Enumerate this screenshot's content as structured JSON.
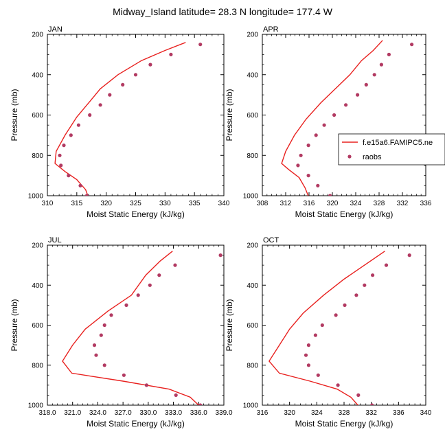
{
  "chart_data": {
    "type": "line",
    "title": "Midway_Island  latitude= 28.3 N longitude= 177.4 W",
    "ylabel": "Pressure (mb)",
    "xlabel": "Moist Static Energy (kJ/kg)",
    "yticks": [
      "200",
      "400",
      "600",
      "800",
      "1000"
    ],
    "ylim": [
      200,
      1000
    ],
    "legend": {
      "placement": "right",
      "entries": [
        {
          "name": "f.e15a6.FAMIPC5.ne",
          "style": "line",
          "color": "#e8201e"
        },
        {
          "name": "raobs",
          "style": "marker",
          "color": "#b23a62"
        }
      ]
    },
    "panels": [
      {
        "name": "JAN",
        "xlim": [
          310,
          340
        ],
        "xticks": [
          "310",
          "315",
          "320",
          "325",
          "330",
          "335",
          "340"
        ],
        "model": {
          "name": "f.e15a6.FAMIPC5.ne",
          "points": [
            [
              333.5,
              240
            ],
            [
              330,
              280
            ],
            [
              326,
              330
            ],
            [
              322,
              400
            ],
            [
              319,
              470
            ],
            [
              317,
              540
            ],
            [
              315,
              610
            ],
            [
              313,
              700
            ],
            [
              311.5,
              780
            ],
            [
              311.3,
              840
            ],
            [
              313,
              880
            ],
            [
              315,
              920
            ],
            [
              316.5,
              970
            ],
            [
              317,
              1010
            ]
          ]
        },
        "obs": {
          "name": "raobs",
          "points": [
            [
              336,
              250
            ],
            [
              331,
              300
            ],
            [
              327.5,
              350
            ],
            [
              325,
              400
            ],
            [
              322.8,
              450
            ],
            [
              320.6,
              500
            ],
            [
              319,
              550
            ],
            [
              317.2,
              600
            ],
            [
              315.3,
              650
            ],
            [
              314,
              700
            ],
            [
              312.8,
              750
            ],
            [
              312.1,
              800
            ],
            [
              312.3,
              850
            ],
            [
              313.6,
              900
            ],
            [
              315.6,
              950
            ],
            [
              316.7,
              1000
            ]
          ]
        }
      },
      {
        "name": "APR",
        "xlim": [
          308,
          336
        ],
        "xticks": [
          "308",
          "312",
          "316",
          "320",
          "324",
          "328",
          "332",
          "336"
        ],
        "model": {
          "name": "f.e15a6.FAMIPC5.ne",
          "points": [
            [
              328.6,
              230
            ],
            [
              327,
              280
            ],
            [
              325,
              330
            ],
            [
              323,
              400
            ],
            [
              320.5,
              470
            ],
            [
              318,
              540
            ],
            [
              315.5,
              620
            ],
            [
              313.5,
              700
            ],
            [
              312,
              780
            ],
            [
              311.3,
              840
            ],
            [
              312.5,
              870
            ],
            [
              314.3,
              910
            ],
            [
              315.3,
              960
            ],
            [
              316,
              1010
            ]
          ]
        },
        "obs": {
          "name": "raobs",
          "points": [
            [
              333.6,
              250
            ],
            [
              329.7,
              300
            ],
            [
              328.4,
              350
            ],
            [
              327.2,
              400
            ],
            [
              325.8,
              450
            ],
            [
              324.3,
              500
            ],
            [
              322.3,
              550
            ],
            [
              320.3,
              600
            ],
            [
              318.6,
              650
            ],
            [
              317.2,
              700
            ],
            [
              315.9,
              750
            ],
            [
              314.6,
              800
            ],
            [
              314.1,
              850
            ],
            [
              315.9,
              900
            ],
            [
              317.5,
              950
            ],
            [
              319.6,
              1000
            ]
          ]
        }
      },
      {
        "name": "JUL",
        "xlim": [
          318,
          339
        ],
        "xticks": [
          "318.0",
          "321.0",
          "324.0",
          "327.0",
          "330.0",
          "333.0",
          "336.0",
          "339.0"
        ],
        "model": {
          "name": "f.e15a6.FAMIPC5.ne",
          "points": [
            [
              332.9,
              230
            ],
            [
              331.4,
              280
            ],
            [
              329.7,
              350
            ],
            [
              328,
              450
            ],
            [
              325.2,
              530
            ],
            [
              322.5,
              620
            ],
            [
              321,
              700
            ],
            [
              319.8,
              780
            ],
            [
              320.9,
              840
            ],
            [
              327,
              880
            ],
            [
              332.5,
              920
            ],
            [
              335,
              960
            ],
            [
              336.5,
              1020
            ]
          ]
        },
        "obs": {
          "name": "raobs",
          "points": [
            [
              338.6,
              250
            ],
            [
              333.2,
              300
            ],
            [
              331.3,
              350
            ],
            [
              330.2,
              400
            ],
            [
              328.8,
              450
            ],
            [
              327.4,
              500
            ],
            [
              325.6,
              550
            ],
            [
              324.8,
              600
            ],
            [
              324.4,
              650
            ],
            [
              323.6,
              700
            ],
            [
              323.8,
              750
            ],
            [
              324.8,
              800
            ],
            [
              327.1,
              850
            ],
            [
              329.8,
              900
            ],
            [
              333.3,
              950
            ],
            [
              336.2,
              1000
            ]
          ]
        }
      },
      {
        "name": "OCT",
        "xlim": [
          316,
          340
        ],
        "xticks": [
          "316",
          "320",
          "324",
          "328",
          "332",
          "336",
          "340"
        ],
        "model": {
          "name": "f.e15a6.FAMIPC5.ne",
          "points": [
            [
              334,
              230
            ],
            [
              331,
              300
            ],
            [
              328,
              370
            ],
            [
              325,
              450
            ],
            [
              322,
              540
            ],
            [
              320,
              620
            ],
            [
              318.5,
              700
            ],
            [
              317,
              780
            ],
            [
              318.5,
              840
            ],
            [
              323,
              880
            ],
            [
              327,
              920
            ],
            [
              329,
              960
            ],
            [
              330.3,
              1010
            ]
          ]
        },
        "obs": {
          "name": "raobs",
          "points": [
            [
              337.6,
              250
            ],
            [
              334.2,
              300
            ],
            [
              332.2,
              350
            ],
            [
              331,
              400
            ],
            [
              329.8,
              450
            ],
            [
              328.1,
              500
            ],
            [
              326.8,
              550
            ],
            [
              324.8,
              600
            ],
            [
              323.8,
              650
            ],
            [
              322.8,
              700
            ],
            [
              322.4,
              750
            ],
            [
              322.8,
              800
            ],
            [
              324.2,
              850
            ],
            [
              327.1,
              900
            ],
            [
              330.1,
              950
            ],
            [
              332.1,
              1000
            ]
          ]
        }
      }
    ]
  }
}
